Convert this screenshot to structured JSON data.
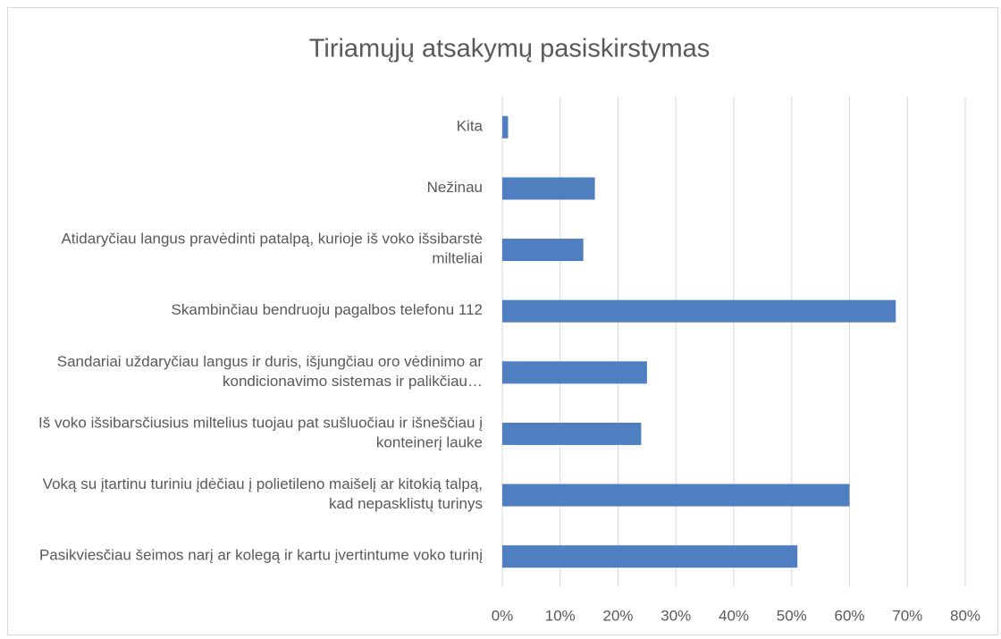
{
  "chart_data": {
    "type": "barh",
    "title": "Tiriamųjų atsakymų pasiskirstymas",
    "categories": [
      "Kita",
      "Nežinau",
      "Atidaryčiau langus pravėdinti patalpą, kurioje iš voko išsibarstė milteliai",
      "Skambinčiau bendruoju pagalbos telefonu 112",
      "Sandariai uždaryčiau langus ir duris, išjungčiau oro vėdinimo ar kondicionavimo sistemas ir palikčiau…",
      "Iš voko išsibarsčiusius miltelius tuojau pat sušluočiau ir išneščiau į konteinerį lauke",
      "Voką su įtartinu turiniu įdėčiau į polietileno maišelį ar kitokią talpą, kad nepasklistų turinys",
      "Pasikviesčiau šeimos narį ar kolegą ir kartu įvertintume voko turinį"
    ],
    "values": [
      1,
      16,
      14,
      68,
      25,
      24,
      60,
      51
    ],
    "color": "#4f7fc0",
    "xlim": [
      0,
      80
    ],
    "xticks": [
      {
        "value": 0,
        "label": "0%"
      },
      {
        "value": 10,
        "label": "10%"
      },
      {
        "value": 20,
        "label": "20%"
      },
      {
        "value": 30,
        "label": "30%"
      },
      {
        "value": 40,
        "label": "40%"
      },
      {
        "value": 50,
        "label": "50%"
      },
      {
        "value": 60,
        "label": "60%"
      },
      {
        "value": 70,
        "label": "70%"
      },
      {
        "value": 80,
        "label": "80%"
      }
    ],
    "grid": true
  }
}
